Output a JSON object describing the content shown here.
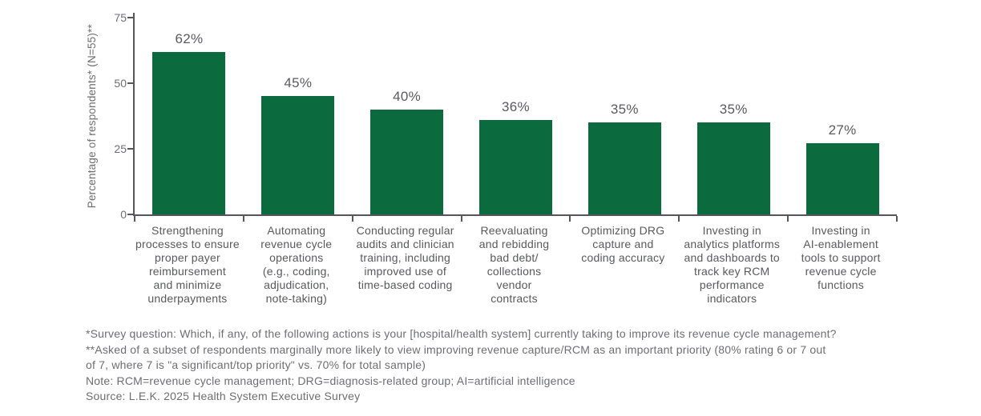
{
  "chart_data": {
    "type": "bar",
    "title": "",
    "ylabel": "Percentage of respondents* (N=55)**",
    "xlabel": "",
    "ylim": [
      0,
      75
    ],
    "yticks": [
      0,
      25,
      50,
      75
    ],
    "grid": false,
    "legend_position": "none",
    "bar_color": "#0c6b3e",
    "categories": [
      "Strengthening\nprocesses to ensure\nproper payer\nreimbursement\nand minimize\nunderpayments",
      "Automating\nrevenue cycle\noperations\n(e.g., coding,\nadjudication,\nnote-taking)",
      "Conducting regular\naudits and clinician\ntraining, including\nimproved use of\ntime-based coding",
      "Reevaluating\nand rebidding\nbad debt/\ncollections\nvendor\ncontracts",
      "Optimizing DRG\ncapture and\ncoding accuracy",
      "Investing in\nanalytics platforms\nand dashboards to\ntrack key RCM\nperformance\nindicators",
      "Investing in\nAI-enablement\ntools to support\nrevenue cycle\nfunctions"
    ],
    "values": [
      62,
      45,
      40,
      36,
      35,
      35,
      27
    ],
    "value_labels": [
      "62%",
      "45%",
      "40%",
      "36%",
      "35%",
      "35%",
      "27%"
    ]
  },
  "footnotes": {
    "lines": [
      "*Survey question: Which, if any, of the following actions is your [hospital/health system] currently taking to improve its revenue cycle management?",
      "**Asked of a subset of respondents marginally more likely to view improving revenue capture/RCM as an important priority (80% rating 6 or 7 out",
      "of 7, where 7 is \"a significant/top priority\" vs. 70% for total sample)",
      "Note: RCM=revenue cycle management; DRG=diagnosis-related group; AI=artificial intelligence",
      "Source: L.E.K. 2025 Health System Executive Survey"
    ]
  },
  "colors": {
    "bar": "#0c6b3e",
    "axis": "#55565a",
    "tick_label": "#6d6e71",
    "value_label": "#595a5e",
    "category_label": "#58595b",
    "footnote": "#6d6e71"
  }
}
